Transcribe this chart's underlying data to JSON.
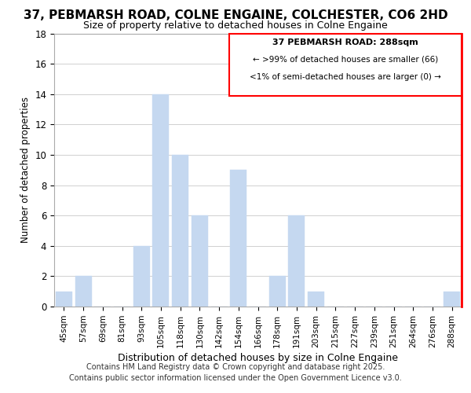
{
  "title": "37, PEBMARSH ROAD, COLNE ENGAINE, COLCHESTER, CO6 2HD",
  "subtitle": "Size of property relative to detached houses in Colne Engaine",
  "xlabel": "Distribution of detached houses by size in Colne Engaine",
  "ylabel": "Number of detached properties",
  "categories": [
    "45sqm",
    "57sqm",
    "69sqm",
    "81sqm",
    "93sqm",
    "105sqm",
    "118sqm",
    "130sqm",
    "142sqm",
    "154sqm",
    "166sqm",
    "178sqm",
    "191sqm",
    "203sqm",
    "215sqm",
    "227sqm",
    "239sqm",
    "251sqm",
    "264sqm",
    "276sqm",
    "288sqm"
  ],
  "values": [
    1,
    2,
    0,
    0,
    4,
    14,
    10,
    6,
    0,
    9,
    0,
    2,
    6,
    1,
    0,
    0,
    0,
    0,
    0,
    0,
    1
  ],
  "bar_color": "#c5d8f0",
  "ylim_max": 18,
  "yticks": [
    0,
    2,
    4,
    6,
    8,
    10,
    12,
    14,
    16,
    18
  ],
  "annotation_title": "37 PEBMARSH ROAD: 288sqm",
  "annotation_line1": "← >99% of detached houses are smaller (66)",
  "annotation_line2": "<1% of semi-detached houses are larger (0) →",
  "footer_line1": "Contains HM Land Registry data © Crown copyright and database right 2025.",
  "footer_line2": "Contains public sector information licensed under the Open Government Licence v3.0.",
  "background_color": "#ffffff",
  "plot_background": "#ffffff",
  "grid_color": "#d0d0d0",
  "title_fontsize": 11,
  "subtitle_fontsize": 9
}
